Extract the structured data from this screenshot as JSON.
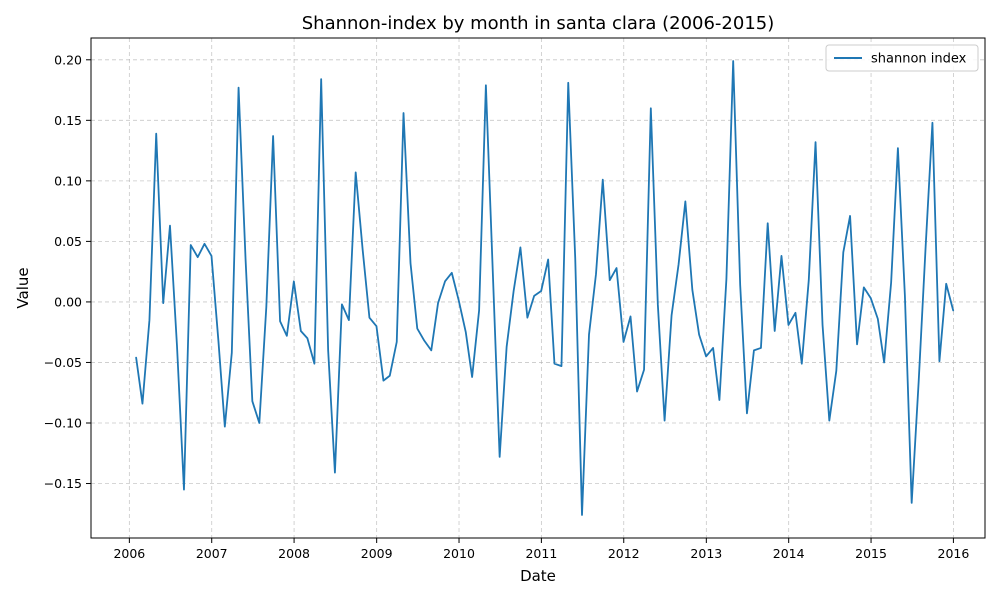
{
  "chart_data": {
    "type": "line",
    "title": "Shannon-index by month in santa clara (2006-2015)",
    "xlabel": "Date",
    "ylabel": "Value",
    "xlim": [
      "2005-07-15",
      "2016-05-20"
    ],
    "ylim": [
      -0.195,
      0.218
    ],
    "x_ticks": [
      "2006",
      "2007",
      "2008",
      "2009",
      "2010",
      "2011",
      "2012",
      "2013",
      "2014",
      "2015",
      "2016"
    ],
    "y_ticks": [
      0.2,
      0.15,
      0.1,
      0.05,
      0.0,
      -0.05,
      -0.1,
      -0.15
    ],
    "y_tick_labels": [
      "0.20",
      "0.15",
      "0.10",
      "0.05",
      "0.00",
      "−0.05",
      "−0.10",
      "−0.15"
    ],
    "grid": true,
    "legend_position": "top-right",
    "series": [
      {
        "name": "shannon index",
        "color": "#1f77b4",
        "x": [
          "2006-01-31",
          "2006-02-28",
          "2006-03-31",
          "2006-04-30",
          "2006-05-31",
          "2006-06-30",
          "2006-07-31",
          "2006-08-31",
          "2006-09-30",
          "2006-10-31",
          "2006-11-30",
          "2006-12-31",
          "2007-01-31",
          "2007-02-28",
          "2007-03-31",
          "2007-04-30",
          "2007-05-31",
          "2007-06-30",
          "2007-07-31",
          "2007-08-31",
          "2007-09-30",
          "2007-10-31",
          "2007-11-30",
          "2007-12-31",
          "2008-01-31",
          "2008-02-29",
          "2008-03-31",
          "2008-04-30",
          "2008-05-31",
          "2008-06-30",
          "2008-07-31",
          "2008-08-31",
          "2008-09-30",
          "2008-10-31",
          "2008-11-30",
          "2008-12-31",
          "2009-01-31",
          "2009-02-28",
          "2009-03-31",
          "2009-04-30",
          "2009-05-31",
          "2009-06-30",
          "2009-07-31",
          "2009-08-31",
          "2009-09-30",
          "2009-10-31",
          "2009-11-30",
          "2009-12-31",
          "2010-01-31",
          "2010-02-28",
          "2010-03-31",
          "2010-04-30",
          "2010-05-31",
          "2010-06-30",
          "2010-07-31",
          "2010-08-31",
          "2010-09-30",
          "2010-10-31",
          "2010-11-30",
          "2010-12-31",
          "2011-01-31",
          "2011-02-28",
          "2011-03-31",
          "2011-04-30",
          "2011-05-31",
          "2011-06-30",
          "2011-07-31",
          "2011-08-31",
          "2011-09-30",
          "2011-10-31",
          "2011-11-30",
          "2011-12-31",
          "2012-01-31",
          "2012-02-29",
          "2012-03-31",
          "2012-04-30",
          "2012-05-31",
          "2012-06-30",
          "2012-07-31",
          "2012-08-31",
          "2012-09-30",
          "2012-10-31",
          "2012-11-30",
          "2012-12-31",
          "2013-01-31",
          "2013-02-28",
          "2013-03-31",
          "2013-04-30",
          "2013-05-31",
          "2013-06-30",
          "2013-07-31",
          "2013-08-31",
          "2013-09-30",
          "2013-10-31",
          "2013-11-30",
          "2013-12-31",
          "2014-01-31",
          "2014-02-28",
          "2014-03-31",
          "2014-04-30",
          "2014-05-31",
          "2014-06-30",
          "2014-07-31",
          "2014-08-31",
          "2014-09-30",
          "2014-10-31",
          "2014-11-30",
          "2014-12-31",
          "2015-01-31",
          "2015-02-28",
          "2015-03-31",
          "2015-04-30",
          "2015-05-31",
          "2015-06-30",
          "2015-07-31",
          "2015-08-31",
          "2015-09-30",
          "2015-10-31",
          "2015-11-30",
          "2015-12-31"
        ],
        "values": [
          -0.046,
          -0.084,
          -0.015,
          0.139,
          -0.001,
          0.063,
          -0.036,
          -0.155,
          0.047,
          0.037,
          0.048,
          0.038,
          -0.033,
          -0.103,
          -0.042,
          0.177,
          0.035,
          -0.082,
          -0.1,
          -0.004,
          0.137,
          -0.016,
          -0.028,
          0.017,
          -0.024,
          -0.03,
          -0.051,
          0.184,
          -0.04,
          -0.141,
          -0.002,
          -0.015,
          0.107,
          0.043,
          -0.013,
          -0.02,
          -0.065,
          -0.061,
          -0.033,
          0.156,
          0.032,
          -0.022,
          -0.032,
          -0.04,
          -0.001,
          0.017,
          0.024,
          0.001,
          -0.025,
          -0.062,
          -0.007,
          0.179,
          0.023,
          -0.128,
          -0.037,
          0.009,
          0.045,
          -0.013,
          0.005,
          0.009,
          0.035,
          -0.051,
          -0.053,
          0.181,
          0.036,
          -0.176,
          -0.027,
          0.023,
          0.101,
          0.018,
          0.028,
          -0.033,
          -0.012,
          -0.074,
          -0.056,
          0.16,
          -0.002,
          -0.098,
          -0.011,
          0.031,
          0.083,
          0.01,
          -0.027,
          -0.045,
          -0.038,
          -0.081,
          0.019,
          0.199,
          0.014,
          -0.092,
          -0.04,
          -0.038,
          0.065,
          -0.024,
          0.038,
          -0.019,
          -0.009,
          -0.051,
          0.018,
          0.132,
          -0.019,
          -0.098,
          -0.057,
          0.041,
          0.071,
          -0.035,
          0.012,
          0.003,
          -0.014,
          -0.05,
          0.016,
          0.127,
          0.005,
          -0.166,
          -0.066,
          0.046,
          0.148,
          -0.049,
          0.015,
          -0.007
        ]
      }
    ]
  }
}
